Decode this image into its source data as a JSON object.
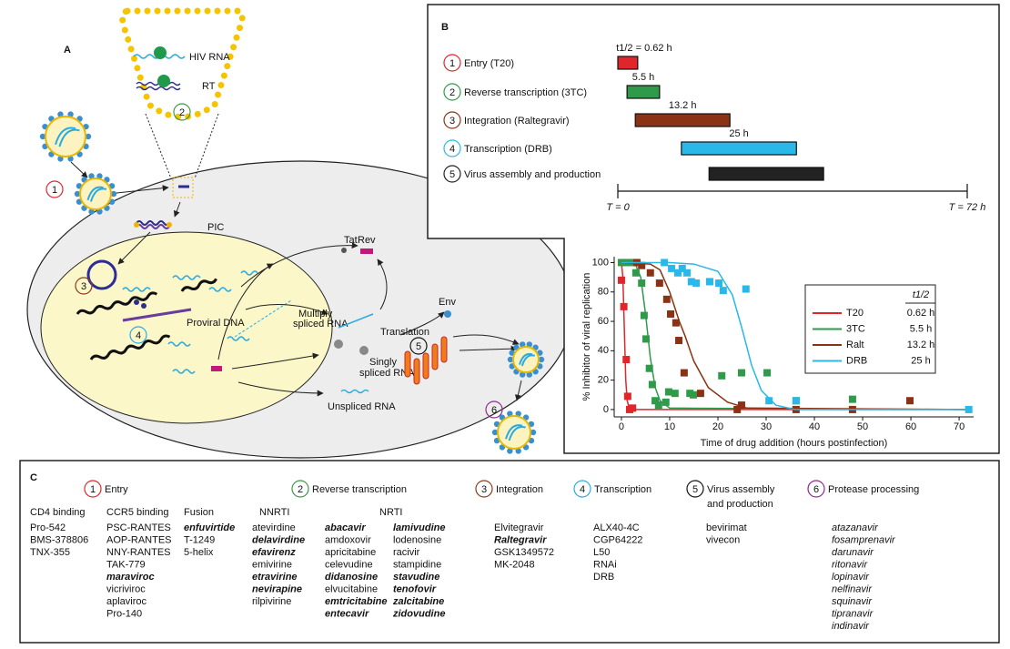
{
  "panel_a": {
    "label": "A",
    "hiv_rna": "HIV RNA",
    "rt": "RT",
    "pic": "PIC",
    "tat": "Tat",
    "rev": "Rev",
    "env": "Env",
    "proviral_dna": "Proviral DNA",
    "multiply_spliced_rna": [
      "Multiply",
      "spliced RNA"
    ],
    "translation": "Translation",
    "singly_spliced_rna": [
      "Singly",
      "spliced RNA"
    ],
    "unspliced_rna": "Unspliced RNA",
    "steps": [
      "1",
      "2",
      "3",
      "4",
      "5",
      "6"
    ]
  },
  "panel_b": {
    "label": "B",
    "xlim": [
      0,
      72
    ],
    "xticks": [
      {
        "value": 0,
        "label": "T = 0"
      },
      {
        "value": 72,
        "label": "T = 72 h"
      }
    ],
    "steps": [
      {
        "number": "1",
        "name": "Entry (T20)",
        "color": "#e0262b",
        "start": 0,
        "end": 4.1,
        "bar_label": "t1/2 = 0.62 h"
      },
      {
        "number": "2",
        "name": "Reverse transcription (3TC)",
        "color": "#2e9a4a",
        "start": 1.9,
        "end": 8.6,
        "bar_label": "5.5 h"
      },
      {
        "number": "3",
        "name": "Integration (Raltegravir)",
        "color": "#8a3213",
        "start": 3.6,
        "end": 23.1,
        "bar_label": "13.2 h"
      },
      {
        "number": "4",
        "name": "Transcription (DRB)",
        "color": "#29b8e8",
        "start": 13.1,
        "end": 36.8,
        "bar_label": "25 h"
      },
      {
        "number": "5",
        "name": "Virus assembly and production",
        "color": "#222222",
        "start": 18.8,
        "end": 42.4
      }
    ]
  },
  "chart_data": {
    "type": "scatter",
    "x_label": "Time of drug addition (hours postinfection)",
    "y_label": "% Inhibitor of viral replication",
    "xlim": [
      -1.5,
      73
    ],
    "ylim": [
      -5,
      104
    ],
    "xticks": [
      0,
      10,
      20,
      30,
      40,
      50,
      60,
      70
    ],
    "yticks": [
      0,
      20,
      40,
      60,
      80,
      100
    ],
    "legend_title": "t1/2",
    "series": [
      {
        "name": "T20",
        "half_life": "0.62 h",
        "color": "#e0262b",
        "x": [
          0,
          0.5,
          1,
          1.3,
          1.7,
          2.3
        ],
        "values": [
          88,
          70,
          34,
          9,
          0,
          1
        ],
        "line_x": [
          0,
          0.3,
          0.6,
          0.9,
          1.2,
          1.6,
          2.2,
          72
        ],
        "line_values": [
          100,
          90,
          55,
          20,
          6,
          1,
          0,
          0
        ]
      },
      {
        "name": "3TC",
        "half_life": "5.5 h",
        "color": "#2e9a4a",
        "x": [
          0,
          1,
          2.1,
          3,
          4.2,
          4.7,
          5.1,
          5.8,
          6.4,
          7,
          7.7,
          9.2,
          9.8,
          11.1,
          14.2,
          14.9,
          20.8,
          24.9,
          30.2,
          36.2,
          47.9
        ],
        "values": [
          100,
          100,
          100,
          93,
          86,
          64,
          48,
          28,
          17,
          6,
          3,
          5,
          12,
          11,
          11,
          10,
          23,
          25,
          25,
          6,
          7
        ],
        "line_x": [
          0,
          3,
          4,
          5,
          5.5,
          6,
          7,
          8,
          10,
          72
        ],
        "line_values": [
          100,
          98,
          90,
          65,
          50,
          35,
          15,
          6,
          1,
          0
        ]
      },
      {
        "name": "Ralt",
        "half_life": "13.2 h",
        "color": "#8a3213",
        "x": [
          3.2,
          4.2,
          6,
          7.9,
          9.4,
          10.2,
          11.3,
          11.9,
          13,
          16.4,
          24,
          24.9,
          36.2,
          47.9,
          59.8
        ],
        "values": [
          100,
          98,
          93,
          86,
          75,
          65,
          59,
          47,
          25,
          11,
          0,
          3,
          0,
          0,
          6
        ],
        "line_x": [
          0,
          6,
          8,
          10,
          12,
          13.2,
          15,
          18,
          22,
          26,
          72
        ],
        "line_values": [
          100,
          99,
          95,
          80,
          60,
          50,
          33,
          15,
          5,
          1,
          0
        ]
      },
      {
        "name": "DRB",
        "half_life": "25 h",
        "color": "#29b8e8",
        "x": [
          8.9,
          10.4,
          11.7,
          12.6,
          13.6,
          14.5,
          15.5,
          18.3,
          20.2,
          21.1,
          25.8,
          30.6,
          36.2,
          72
        ],
        "values": [
          100,
          96,
          93,
          96,
          93,
          87,
          86,
          87,
          86,
          81,
          82,
          6,
          6,
          0
        ],
        "line_x": [
          0,
          10,
          15,
          20,
          23,
          25,
          27,
          29,
          32,
          36,
          72
        ],
        "line_values": [
          100,
          100,
          99,
          94,
          78,
          55,
          30,
          13,
          3,
          0,
          0
        ]
      }
    ]
  },
  "panel_c": {
    "label": "C",
    "groups": [
      {
        "number": "1",
        "title_lines": [
          "Entry"
        ],
        "color": "#e0262b",
        "subgroups": [
          {
            "heading": "CD4 binding",
            "items": [
              "Pro-542",
              "BMS-378806",
              "TNX-355"
            ]
          },
          {
            "heading": "CCR5 binding",
            "items": [
              "PSC-RANTES",
              "AOP-RANTES",
              "NNY-RANTES",
              "TAK-779",
              {
                "text": "maraviroc",
                "emphasis": true
              },
              "vicriviroc",
              "aplaviroc",
              "Pro-140"
            ]
          },
          {
            "heading": "Fusion",
            "items": [
              {
                "text": "enfuvirtide",
                "emphasis": true
              },
              "T-1249",
              "5-helix"
            ]
          }
        ]
      },
      {
        "number": "2",
        "title_lines": [
          "Reverse transcription"
        ],
        "color": "#3a9a46",
        "subgroups": [
          {
            "heading": "NNRTI",
            "items": [
              "atevirdine",
              {
                "text": "delavirdine",
                "emphasis": true
              },
              {
                "text": "efavirenz",
                "emphasis": true
              },
              "emivirine",
              {
                "text": "etravirine",
                "emphasis": true
              },
              {
                "text": "nevirapine",
                "emphasis": true
              },
              "rilpivirine"
            ]
          },
          {
            "heading": "NRTI",
            "items": [
              {
                "text": "abacavir",
                "emphasis": true
              },
              "amdoxovir",
              "apricitabine",
              "celevudine",
              {
                "text": "didanosine",
                "emphasis": true
              },
              "elvucitabine",
              {
                "text": "emtricitabine",
                "emphasis": true
              },
              {
                "text": "entecavir",
                "emphasis": true
              }
            ]
          },
          {
            "items": [
              {
                "text": "lamivudine",
                "emphasis": true
              },
              "lodenosine",
              "racivir",
              "stampidine",
              {
                "text": "stavudine",
                "emphasis": true
              },
              {
                "text": "tenofovir",
                "emphasis": true
              },
              {
                "text": "zalcitabine",
                "emphasis": true
              },
              {
                "text": "zidovudine",
                "emphasis": true
              }
            ]
          }
        ]
      },
      {
        "number": "3",
        "title_lines": [
          "Integration"
        ],
        "color": "#8a3b1a",
        "subgroups": [
          {
            "items": [
              "Elvitegravir",
              {
                "text": "Raltegravir",
                "emphasis": true
              },
              "GSK1349572",
              "MK-2048"
            ]
          }
        ]
      },
      {
        "number": "4",
        "title_lines": [
          "Transcription"
        ],
        "color": "#29abe2",
        "subgroups": [
          {
            "items": [
              "ALX40-4C",
              "CGP64222",
              "L50",
              "RNAi",
              "DRB"
            ]
          }
        ]
      },
      {
        "number": "5",
        "title_lines": [
          "Virus assembly",
          "and production"
        ],
        "color": "#111111",
        "subgroups": [
          {
            "items": [
              "bevirimat",
              "vivecon"
            ]
          }
        ]
      },
      {
        "number": "6",
        "title_lines": [
          "Protease processing"
        ],
        "color": "#93278f",
        "italic": true,
        "subgroups": [
          {
            "items": [
              "atazanavir",
              "fosamprenavir",
              "darunavir",
              "ritonavir",
              "lopinavir",
              "nelfinavir",
              "squinavir",
              "tipranavir",
              "indinavir"
            ]
          }
        ]
      }
    ]
  }
}
